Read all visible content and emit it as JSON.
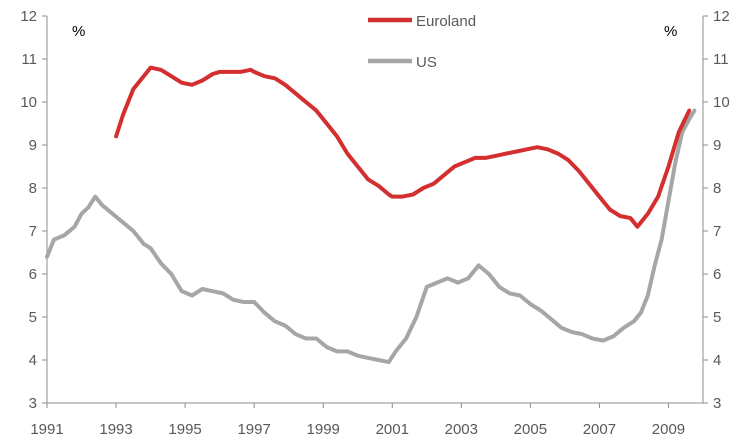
{
  "chart_data": {
    "type": "line",
    "title": "",
    "xlabel": "",
    "ylabel": "%",
    "ylabel_right": "%",
    "xlim": [
      1991,
      2010
    ],
    "ylim": [
      3,
      12
    ],
    "x_ticks": [
      1991,
      1993,
      1995,
      1997,
      1999,
      2001,
      2003,
      2005,
      2007,
      2009
    ],
    "y_ticks": [
      3,
      4,
      5,
      6,
      7,
      8,
      9,
      10,
      11,
      12
    ],
    "grid": false,
    "legend_position": "top-center",
    "series": [
      {
        "name": "Euroland",
        "color": "#d32f2f",
        "x": [
          1993.0,
          1993.2,
          1993.5,
          1993.8,
          1994.0,
          1994.3,
          1994.6,
          1994.9,
          1995.2,
          1995.5,
          1995.8,
          1996.0,
          1996.3,
          1996.6,
          1996.9,
          1997.0,
          1997.3,
          1997.6,
          1997.9,
          1998.2,
          1998.5,
          1998.8,
          1999.1,
          1999.4,
          1999.7,
          2000.0,
          2000.3,
          2000.6,
          2000.9,
          2001.0,
          2001.3,
          2001.6,
          2001.9,
          2002.2,
          2002.5,
          2002.8,
          2003.1,
          2003.4,
          2003.7,
          2004.0,
          2004.3,
          2004.6,
          2004.9,
          2005.2,
          2005.5,
          2005.8,
          2006.1,
          2006.4,
          2006.7,
          2007.0,
          2007.3,
          2007.6,
          2007.9,
          2008.1,
          2008.4,
          2008.7,
          2009.0,
          2009.3,
          2009.6
        ],
        "values": [
          9.2,
          9.7,
          10.3,
          10.6,
          10.8,
          10.75,
          10.6,
          10.45,
          10.4,
          10.5,
          10.65,
          10.7,
          10.7,
          10.7,
          10.75,
          10.7,
          10.6,
          10.55,
          10.4,
          10.2,
          10.0,
          9.8,
          9.5,
          9.2,
          8.8,
          8.5,
          8.2,
          8.05,
          7.85,
          7.8,
          7.8,
          7.85,
          8.0,
          8.1,
          8.3,
          8.5,
          8.6,
          8.7,
          8.7,
          8.75,
          8.8,
          8.85,
          8.9,
          8.95,
          8.9,
          8.8,
          8.65,
          8.4,
          8.1,
          7.8,
          7.5,
          7.35,
          7.3,
          7.1,
          7.4,
          7.8,
          8.5,
          9.3,
          9.8
        ]
      },
      {
        "name": "US",
        "color": "#a6a6a6",
        "x": [
          1991.0,
          1991.2,
          1991.5,
          1991.8,
          1992.0,
          1992.2,
          1992.4,
          1992.6,
          1992.9,
          1993.2,
          1993.5,
          1993.8,
          1994.0,
          1994.3,
          1994.6,
          1994.9,
          1995.2,
          1995.5,
          1995.8,
          1996.1,
          1996.4,
          1996.7,
          1997.0,
          1997.3,
          1997.6,
          1997.9,
          1998.2,
          1998.5,
          1998.8,
          1999.1,
          1999.4,
          1999.7,
          2000.0,
          2000.3,
          2000.6,
          2000.9,
          2001.1,
          2001.4,
          2001.7,
          2002.0,
          2002.3,
          2002.6,
          2002.9,
          2003.2,
          2003.5,
          2003.8,
          2004.1,
          2004.4,
          2004.7,
          2005.0,
          2005.3,
          2005.6,
          2005.9,
          2006.2,
          2006.5,
          2006.8,
          2007.1,
          2007.4,
          2007.7,
          2008.0,
          2008.2,
          2008.4,
          2008.6,
          2008.8,
          2009.0,
          2009.2,
          2009.4,
          2009.6,
          2009.75
        ],
        "values": [
          6.4,
          6.8,
          6.9,
          7.1,
          7.4,
          7.55,
          7.8,
          7.6,
          7.4,
          7.2,
          7.0,
          6.7,
          6.6,
          6.25,
          6.0,
          5.6,
          5.5,
          5.65,
          5.6,
          5.55,
          5.4,
          5.35,
          5.35,
          5.1,
          4.9,
          4.8,
          4.6,
          4.5,
          4.5,
          4.3,
          4.2,
          4.2,
          4.1,
          4.05,
          4.0,
          3.95,
          4.2,
          4.5,
          5.0,
          5.7,
          5.8,
          5.9,
          5.8,
          5.9,
          6.2,
          6.0,
          5.7,
          5.55,
          5.5,
          5.3,
          5.15,
          4.95,
          4.75,
          4.65,
          4.6,
          4.5,
          4.45,
          4.55,
          4.75,
          4.9,
          5.1,
          5.5,
          6.2,
          6.8,
          7.7,
          8.6,
          9.3,
          9.6,
          9.8
        ]
      }
    ]
  }
}
